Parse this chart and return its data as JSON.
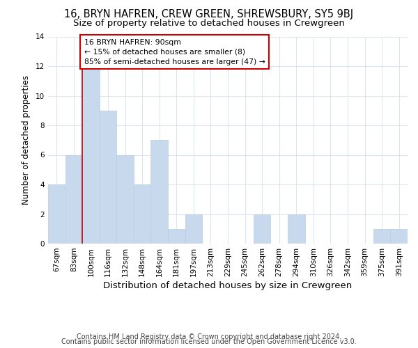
{
  "title": "16, BRYN HAFREN, CREW GREEN, SHREWSBURY, SY5 9BJ",
  "subtitle": "Size of property relative to detached houses in Crewgreen",
  "xlabel": "Distribution of detached houses by size in Crewgreen",
  "ylabel": "Number of detached properties",
  "bar_labels": [
    "67sqm",
    "83sqm",
    "100sqm",
    "116sqm",
    "132sqm",
    "148sqm",
    "164sqm",
    "181sqm",
    "197sqm",
    "213sqm",
    "229sqm",
    "245sqm",
    "262sqm",
    "278sqm",
    "294sqm",
    "310sqm",
    "326sqm",
    "342sqm",
    "359sqm",
    "375sqm",
    "391sqm"
  ],
  "bar_values": [
    4,
    6,
    12,
    9,
    6,
    4,
    7,
    1,
    2,
    0,
    0,
    0,
    2,
    0,
    2,
    0,
    0,
    0,
    0,
    1,
    1
  ],
  "bar_color": "#c9d9ed",
  "bar_edge_color": "#b8cee0",
  "property_line_x": 1.5,
  "annotation_text": "16 BRYN HAFREN: 90sqm\n← 15% of detached houses are smaller (8)\n85% of semi-detached houses are larger (47) →",
  "annotation_box_color": "#ffffff",
  "annotation_box_edge_color": "#cc0000",
  "property_line_color": "#cc0000",
  "ylim": [
    0,
    14
  ],
  "yticks": [
    0,
    2,
    4,
    6,
    8,
    10,
    12,
    14
  ],
  "footer1": "Contains HM Land Registry data © Crown copyright and database right 2024.",
  "footer2": "Contains public sector information licensed under the Open Government Licence v3.0.",
  "background_color": "#ffffff",
  "grid_color": "#dce6f1",
  "title_fontsize": 10.5,
  "subtitle_fontsize": 9.5,
  "xlabel_fontsize": 9.5,
  "ylabel_fontsize": 8.5,
  "tick_fontsize": 7.5,
  "annotation_fontsize": 7.8,
  "footer_fontsize": 7.0
}
